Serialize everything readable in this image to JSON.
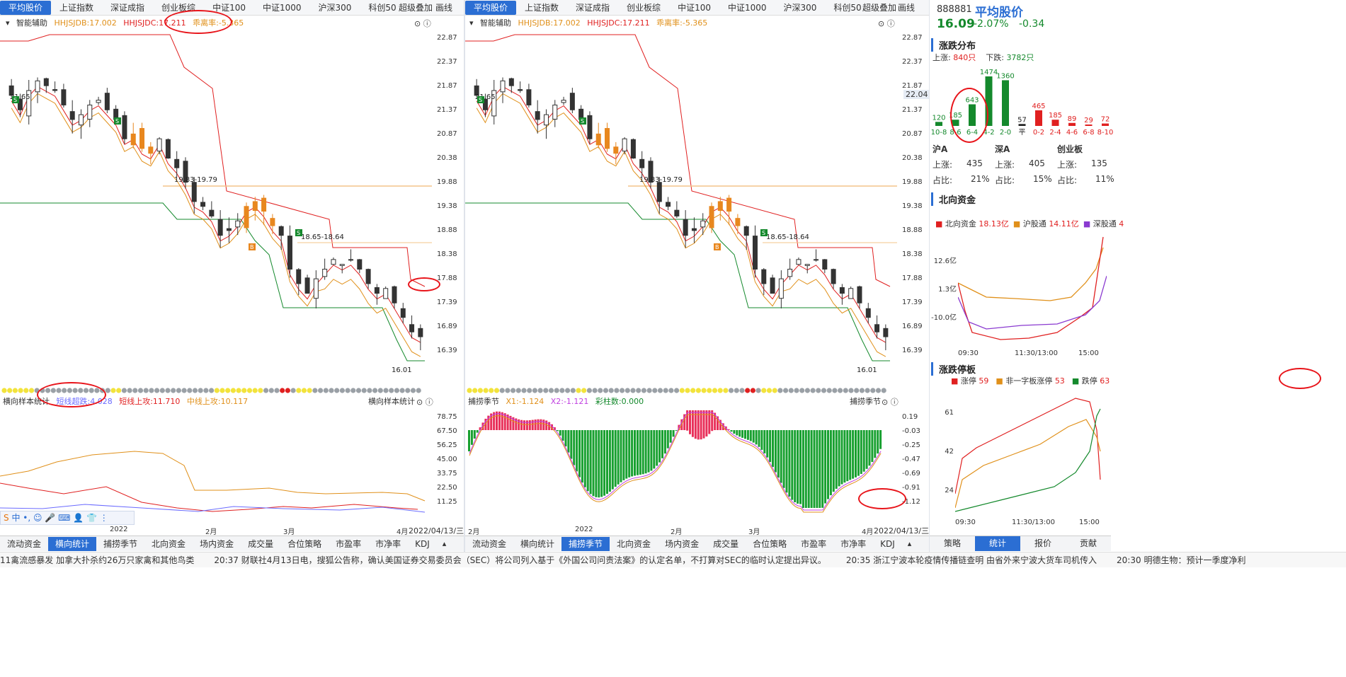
{
  "tabs": [
    "平均股价",
    "上证指数",
    "深证成指",
    "创业板综",
    "中证100",
    "中证1000",
    "沪深300",
    "科创50"
  ],
  "tab_extra": [
    "超级叠加",
    "画线"
  ],
  "left_panel": {
    "indicators": {
      "name": "智能辅助",
      "hhjsjdb": "HHJSJDB:17.002",
      "hhjsjdc": "HHJSJDC:17.211",
      "deviation": "乖离率:-5.365"
    },
    "price_axis": [
      "22.87",
      "22.37",
      "21.87",
      "21.37",
      "20.87",
      "20.38",
      "19.88",
      "19.38",
      "18.88",
      "18.38",
      "17.88",
      "17.39",
      "16.89",
      "16.39"
    ],
    "annotations": {
      "high": "21.65",
      "low": "16.01",
      "r1": "19.83-19.79",
      "r2": "18.65-18.64"
    },
    "sub_title": "横向样本统计",
    "sub_indicators": {
      "a": "短线超跌:4.028",
      "b": "短线上攻:11.710",
      "c": "中线上攻:10.117"
    },
    "sub_label_right": "横向样本统计",
    "sub_axis": [
      "78.75",
      "67.50",
      "56.25",
      "45.00",
      "33.75",
      "22.50",
      "11.25"
    ],
    "x_labels": [
      "2022",
      "2月",
      "3月",
      "4月"
    ],
    "date": "2022/04/13/三",
    "bottom_tabs": [
      "流动资金",
      "横向统计",
      "捕捞季节",
      "北向资金",
      "场内资金",
      "成交量",
      "合位策略",
      "市盈率",
      "市净率",
      "KDJ"
    ],
    "active_bottom": "横向统计"
  },
  "right_panel": {
    "indicators": {
      "name": "智能辅助",
      "hhjsjdb": "HHJSJDB:17.002",
      "hhjsjdc": "HHJSJDC:17.211",
      "deviation": "乖离率:-5.365"
    },
    "price_axis": [
      "22.87",
      "22.37",
      "21.87",
      "21.37",
      "20.87",
      "20.38",
      "19.88",
      "19.38",
      "18.88",
      "18.38",
      "17.88",
      "17.39",
      "16.89",
      "16.39"
    ],
    "current_price": "22.04",
    "annotations": {
      "high": "21.65",
      "low": "16.01",
      "r1": "19.83-19.79",
      "r2": "18.65-18.64"
    },
    "sub_title": "捕捞季节",
    "sub_indicators": {
      "x1": "X1:-1.124",
      "x2": "X2:-1.121",
      "bar": "彩柱数:0.000"
    },
    "sub_label_right": "捕捞季节",
    "sub_axis": [
      "0.19",
      "-0.03",
      "-0.25",
      "-0.47",
      "-0.69",
      "-0.91",
      "-1.12"
    ],
    "x_labels": [
      "2月",
      "2022",
      "2月",
      "3月",
      "4月"
    ],
    "date": "2022/04/13/三",
    "bottom_tabs": [
      "流动资金",
      "横向统计",
      "捕捞季节",
      "北向资金",
      "场内资金",
      "成交量",
      "合位策略",
      "市盈率",
      "市净率",
      "KDJ"
    ],
    "active_bottom": "捕捞季节"
  },
  "sidebar": {
    "code": "888881",
    "name": "平均股价",
    "price": "16.09",
    "change_pct": "-2.07%",
    "change": "-0.34",
    "dist_title": "涨跌分布",
    "up_label": "上涨:",
    "up_count": "840只",
    "down_label": "下跌:",
    "down_count": "3782只",
    "dist": [
      {
        "cat": "10-8",
        "value": "120",
        "c": "g"
      },
      {
        "cat": "8-6",
        "value": "185",
        "c": "g"
      },
      {
        "cat": "6-4",
        "value": "643",
        "c": "g"
      },
      {
        "cat": "4-2",
        "value": "1474",
        "c": "g"
      },
      {
        "cat": "2-0",
        "value": "1360",
        "c": "g"
      },
      {
        "cat": "平",
        "value": "57",
        "c": "k"
      },
      {
        "cat": "0-2",
        "value": "465",
        "c": "r"
      },
      {
        "cat": "2-4",
        "value": "185",
        "c": "r"
      },
      {
        "cat": "4-6",
        "value": "89",
        "c": "r"
      },
      {
        "cat": "6-8",
        "value": "29",
        "c": "r"
      },
      {
        "cat": "8-10",
        "value": "72",
        "c": "r"
      }
    ],
    "markets": [
      {
        "name": "沪A",
        "up": "435",
        "pct": "21%"
      },
      {
        "name": "深A",
        "up": "405",
        "pct": "15%"
      },
      {
        "name": "创业板",
        "up": "135",
        "pct": "11%"
      }
    ],
    "up_row": "上涨:",
    "pct_row": "占比:",
    "north_title": "北向资金",
    "north_legend": [
      {
        "name": "北向资金",
        "value": "18.13亿"
      },
      {
        "name": "沪股通",
        "value": "14.11亿"
      },
      {
        "name": "深股通",
        "value": "4"
      }
    ],
    "north_axis": [
      "12.6亿",
      "1.3亿",
      "-10.0亿"
    ],
    "time_axis": [
      "09:30",
      "11:30/13:00",
      "15:00"
    ],
    "limit_title": "涨跌停板",
    "limit_legend": [
      {
        "name": "涨停",
        "value": "59"
      },
      {
        "name": "非一字板涨停",
        "value": "53"
      },
      {
        "name": "跌停",
        "value": "63"
      }
    ],
    "limit_axis": [
      "61",
      "42",
      "24"
    ],
    "side_tabs": [
      "策略",
      "统计",
      "报价",
      "贡献"
    ],
    "active_side": "统计"
  },
  "ticker": [
    "11禽流感暴发 加拿大扑杀约26万只家禽和其他鸟类",
    "20:37 财联社4月13日电，搜狐公告称，确认美国证券交易委员会（SEC）将公司列入基于《外国公司问责法案》的认定名单，不打算对SEC的临时认定提出异议。",
    "20:35 浙江宁波本轮疫情传播链查明 由省外来宁波大货车司机传入",
    "20:30 明德生物：预计一季度净利"
  ],
  "ime": {
    "label": "中"
  }
}
